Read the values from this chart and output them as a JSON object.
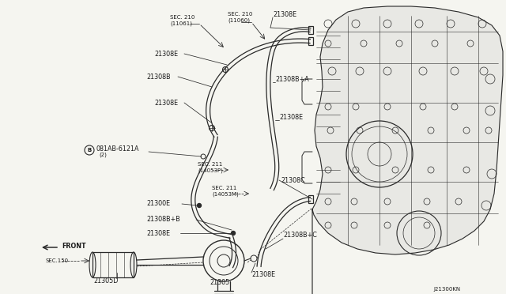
{
  "background_color": "#f5f5f0",
  "line_color": "#2a2a2a",
  "label_color": "#1a1a1a",
  "diagram_id": "J21300KN",
  "fig_width": 6.4,
  "fig_height": 3.72,
  "labels": {
    "sec210_11060": "SEC. 210\n(11060)",
    "sec210_11061": "SEC. 210\n(11061)",
    "sec211_14053P": "SEC. 211\n(14053P)",
    "sec211_14053M": "SEC. 211\n(14053M)",
    "sec150": "SEC.150",
    "front": "FRONT",
    "bolt": "´B´081AB-6121A\n     (2)",
    "21308E": "21308E",
    "21308B": "21308B",
    "21308B_A": "21308B+A",
    "21308B_B": "21308B+B",
    "21308B_C": "21308B+C",
    "21308C": "21308C",
    "21300E": "21300E",
    "21305D": "21305D",
    "21305": "21305"
  }
}
